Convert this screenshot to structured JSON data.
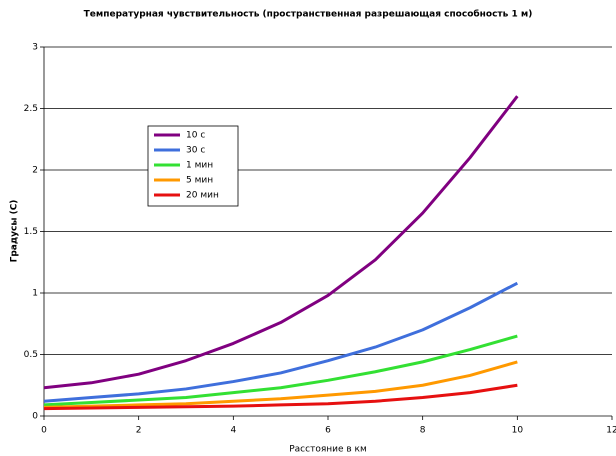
{
  "chart_data": {
    "type": "line",
    "title": "Температурная чувствительность (пространственная разрешающая способность 1 м)",
    "x_label": "Расстояние в км",
    "y_label": "Градусы (C)",
    "x": [
      0,
      1,
      2,
      3,
      4,
      5,
      6,
      7,
      8,
      9,
      10
    ],
    "series": [
      {
        "name": "10 с",
        "color": "#800080",
        "values": [
          0.23,
          0.27,
          0.34,
          0.45,
          0.59,
          0.76,
          0.98,
          1.27,
          1.65,
          2.1,
          2.6
        ]
      },
      {
        "name": "30 с",
        "color": "#3f6fdc",
        "values": [
          0.12,
          0.15,
          0.18,
          0.22,
          0.28,
          0.35,
          0.45,
          0.56,
          0.7,
          0.88,
          1.08
        ]
      },
      {
        "name": "1 мин",
        "color": "#33e033",
        "values": [
          0.09,
          0.11,
          0.13,
          0.15,
          0.19,
          0.23,
          0.29,
          0.36,
          0.44,
          0.54,
          0.65
        ]
      },
      {
        "name": "5 мин",
        "color": "#ff9900",
        "values": [
          0.07,
          0.08,
          0.09,
          0.1,
          0.12,
          0.14,
          0.17,
          0.2,
          0.25,
          0.33,
          0.44
        ]
      },
      {
        "name": "20 мин",
        "color": "#e61010",
        "values": [
          0.06,
          0.065,
          0.07,
          0.075,
          0.08,
          0.09,
          0.1,
          0.12,
          0.15,
          0.19,
          0.25
        ]
      }
    ],
    "xlim": [
      0,
      12
    ],
    "xticks": [
      0,
      2,
      4,
      6,
      8,
      10,
      12
    ],
    "ylim": [
      0,
      3
    ],
    "yticks": [
      0,
      0.5,
      1,
      1.5,
      2,
      2.5,
      3
    ],
    "grid": true
  }
}
